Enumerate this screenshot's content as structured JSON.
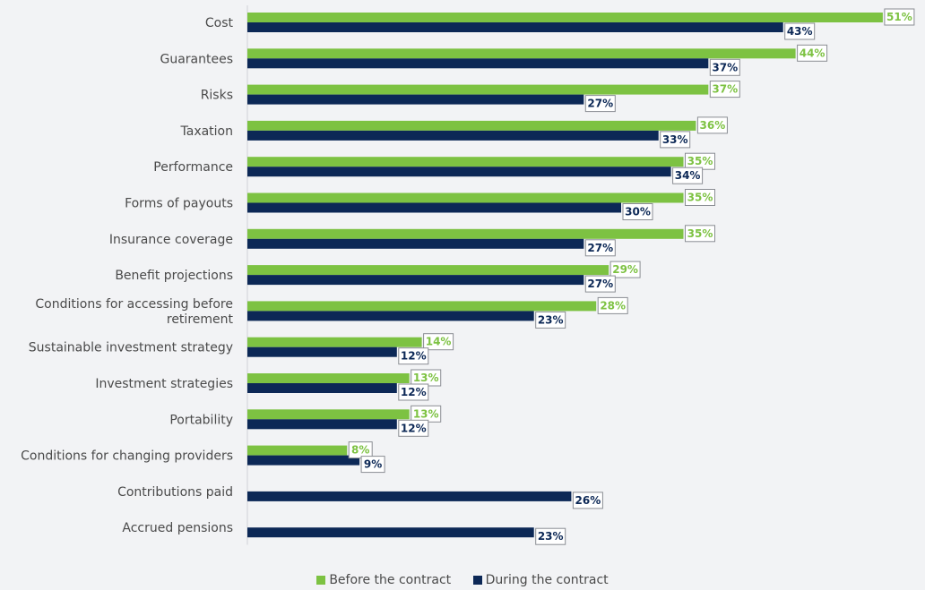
{
  "chart_data": {
    "type": "bar",
    "orientation": "horizontal",
    "categories": [
      "Cost",
      "Guarantees",
      "Risks",
      "Taxation",
      "Performance",
      "Forms of payouts",
      "Insurance coverage",
      "Benefit projections",
      "Conditions for accessing before retirement",
      "Sustainable investment strategy",
      "Investment strategies",
      "Portability",
      "Conditions for changing providers",
      "Contributions paid",
      "Accrued pensions"
    ],
    "series": [
      {
        "name": "Before the contract",
        "color": "#7dc242",
        "values": [
          51,
          44,
          37,
          36,
          35,
          35,
          35,
          29,
          28,
          14,
          13,
          13,
          8,
          null,
          null
        ]
      },
      {
        "name": "During the contract",
        "color": "#0c2856",
        "values": [
          43,
          37,
          27,
          33,
          34,
          30,
          27,
          27,
          23,
          12,
          12,
          12,
          9,
          26,
          23
        ]
      }
    ],
    "value_suffix": "%",
    "xlim": [
      0,
      55
    ],
    "grid": false,
    "legend_position": "bottom"
  }
}
